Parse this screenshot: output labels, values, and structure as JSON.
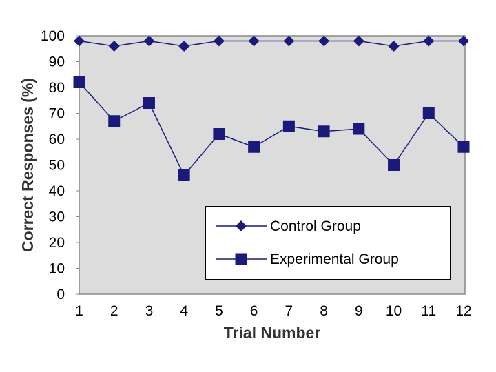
{
  "chart_data": {
    "type": "line",
    "title": "",
    "xlabel": "Trial Number",
    "ylabel": "Correct Responses (%)",
    "x": [
      1,
      2,
      3,
      4,
      5,
      6,
      7,
      8,
      9,
      10,
      11,
      12
    ],
    "ylim": [
      0,
      100
    ],
    "yticks": [
      0,
      10,
      20,
      30,
      40,
      50,
      60,
      70,
      80,
      90,
      100
    ],
    "grid": false,
    "legend_position": "bottom-right",
    "series": [
      {
        "name": "Control Group",
        "marker": "diamond",
        "color": "#1a1a7a",
        "values": [
          98,
          96,
          98,
          96,
          98,
          98,
          98,
          98,
          98,
          96,
          98,
          98
        ]
      },
      {
        "name": "Experimental Group",
        "marker": "square",
        "color": "#1a1a7a",
        "values": [
          82,
          67,
          74,
          46,
          62,
          57,
          65,
          63,
          64,
          50,
          70,
          57
        ]
      }
    ],
    "colors": {
      "plot_background": "#dcdcdc",
      "plot_border": "#888888",
      "series": "#1a1a7a"
    }
  }
}
